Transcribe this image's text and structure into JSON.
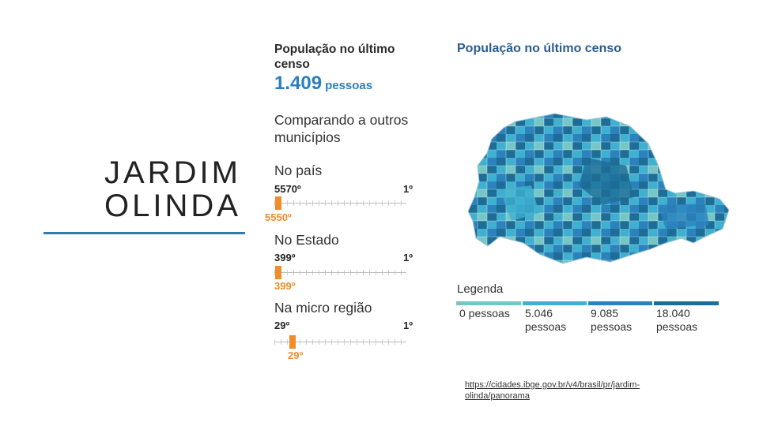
{
  "slide": {
    "title_line1": "JARDIM",
    "title_line2": "OLINDA"
  },
  "left_panel": {
    "population_header": "População no último censo",
    "population_value": "1.409",
    "population_unit": "pessoas",
    "compare_header": "Comparando a outros municípios",
    "rankings": [
      {
        "label": "No país",
        "position": "5570º",
        "top": "1º",
        "marker_value": "5550º"
      },
      {
        "label": "No Estado",
        "position": "399º",
        "top": "1º",
        "marker_value": "399º"
      },
      {
        "label": "Na micro região",
        "position": "29º",
        "top": "1º",
        "marker_value": "29º"
      }
    ]
  },
  "right_panel": {
    "map_title": "População no último censo",
    "legend_title": "Legenda",
    "legend": [
      {
        "line1": "0 pessoas",
        "line2": "",
        "color": "#76c6c6"
      },
      {
        "line1": "5.046",
        "line2": "pessoas",
        "color": "#3fb0cf"
      },
      {
        "line1": "9.085",
        "line2": "pessoas",
        "color": "#2c82bd"
      },
      {
        "line1": "18.040",
        "line2": "pessoas",
        "color": "#1d6d96"
      }
    ]
  },
  "source": {
    "url": "https://cidades.ibge.gov.br/v4/brasil/pr/jardim-olinda/panorama"
  },
  "colors": {
    "accent": "#2b7fc0",
    "marker": "#f08c2a",
    "rule": "#2e7bb0"
  }
}
